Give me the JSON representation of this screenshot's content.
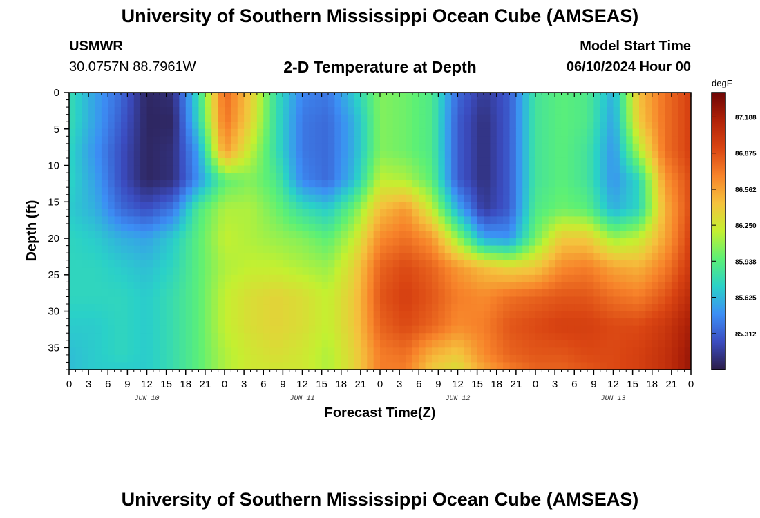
{
  "page": {
    "title_top": "University of Southern Mississippi Ocean Cube (AMSEAS)",
    "title_bottom": "University of Southern Mississippi Ocean Cube (AMSEAS)",
    "station_name": "USMWR",
    "station_coords": "30.0757N  88.7961W",
    "plot_title": "2-D Temperature at Depth",
    "model_start_label": "Model Start Time",
    "model_start_value": "06/10/2024 Hour 00"
  },
  "chart_data": {
    "type": "heatmap",
    "title": "2-D Temperature at Depth",
    "xlabel": "Forecast Time(Z)",
    "ylabel": "Depth (ft)",
    "units": "degF",
    "xlim": [
      0,
      96
    ],
    "ylim": [
      0,
      38
    ],
    "x_ticks": [
      0,
      3,
      6,
      9,
      12,
      15,
      18,
      21,
      24,
      27,
      30,
      33,
      36,
      39,
      42,
      45,
      48,
      51,
      54,
      57,
      60,
      63,
      66,
      69,
      72,
      75,
      78,
      81,
      84,
      87,
      90,
      93,
      96
    ],
    "x_tick_labels": [
      "0",
      "3",
      "6",
      "9",
      "12",
      "15",
      "18",
      "21",
      "0",
      "3",
      "6",
      "9",
      "12",
      "15",
      "18",
      "21",
      "0",
      "3",
      "6",
      "9",
      "12",
      "15",
      "18",
      "21",
      "0",
      "3",
      "6",
      "9",
      "12",
      "15",
      "18",
      "21",
      "0"
    ],
    "day_labels": [
      {
        "x": 12,
        "label": "JUN 10"
      },
      {
        "x": 36,
        "label": "JUN 11"
      },
      {
        "x": 60,
        "label": "JUN 12"
      },
      {
        "x": 84,
        "label": "JUN 13"
      }
    ],
    "y_ticks": [
      0,
      5,
      10,
      15,
      20,
      25,
      30,
      35
    ],
    "colorbar": {
      "min": 85.0,
      "max": 87.4,
      "ticks": [
        85.312,
        85.625,
        85.938,
        86.25,
        86.562,
        86.875,
        87.188
      ],
      "tick_labels": [
        "85.312",
        "85.625",
        "85.938",
        "86.250",
        "86.562",
        "86.875",
        "87.188"
      ],
      "stops": [
        "#2b1d49",
        "#3b4cc0",
        "#3c8ef5",
        "#2ad1c8",
        "#5cf076",
        "#c4f030",
        "#f5c23d",
        "#f7832a",
        "#d94412",
        "#b02208",
        "#6e0606"
      ]
    },
    "depth_levels": [
      0,
      4,
      8,
      12,
      16,
      20,
      24,
      28,
      32,
      36,
      38
    ],
    "time_steps": [
      0,
      4,
      8,
      12,
      16,
      20,
      24,
      28,
      32,
      36,
      40,
      44,
      48,
      52,
      56,
      60,
      64,
      68,
      72,
      76,
      80,
      84,
      88,
      92,
      96
    ],
    "values": [
      [
        85.8,
        85.55,
        85.35,
        85.05,
        85.1,
        85.8,
        86.8,
        86.4,
        85.8,
        85.45,
        85.4,
        85.7,
        86.05,
        86.0,
        85.9,
        85.35,
        85.15,
        85.3,
        85.85,
        85.95,
        85.9,
        85.6,
        86.45,
        86.75,
        86.95
      ],
      [
        85.8,
        85.55,
        85.3,
        85.05,
        85.05,
        85.75,
        86.75,
        86.35,
        85.8,
        85.4,
        85.35,
        85.6,
        86.05,
        86.0,
        85.9,
        85.3,
        85.1,
        85.3,
        85.85,
        85.95,
        85.9,
        85.55,
        86.4,
        86.75,
        86.95
      ],
      [
        85.75,
        85.5,
        85.25,
        85.05,
        85.1,
        85.55,
        86.6,
        86.2,
        85.8,
        85.4,
        85.35,
        85.6,
        86.05,
        86.0,
        85.9,
        85.3,
        85.1,
        85.3,
        85.85,
        85.95,
        85.85,
        85.5,
        86.15,
        86.75,
        86.95
      ],
      [
        85.75,
        85.55,
        85.25,
        85.05,
        85.1,
        85.5,
        85.95,
        86.05,
        85.9,
        85.45,
        85.35,
        85.65,
        86.2,
        86.15,
        85.95,
        85.3,
        85.1,
        85.3,
        85.85,
        85.95,
        85.85,
        85.5,
        85.75,
        86.6,
        86.9
      ],
      [
        85.7,
        85.6,
        85.35,
        85.25,
        85.4,
        85.9,
        86.15,
        86.15,
        86.0,
        85.8,
        85.7,
        86.0,
        86.45,
        86.6,
        86.2,
        85.6,
        85.15,
        85.3,
        85.9,
        86.0,
        85.95,
        85.6,
        85.75,
        86.5,
        86.9
      ],
      [
        85.75,
        85.7,
        85.6,
        85.55,
        85.7,
        85.95,
        86.2,
        86.15,
        86.1,
        86.05,
        85.95,
        86.2,
        86.65,
        86.75,
        86.6,
        86.1,
        85.55,
        85.5,
        86.0,
        86.4,
        86.4,
        86.1,
        86.2,
        86.55,
        86.95
      ],
      [
        85.75,
        85.75,
        85.7,
        85.65,
        85.75,
        85.95,
        86.15,
        86.2,
        86.2,
        86.15,
        86.1,
        86.35,
        86.8,
        86.9,
        86.8,
        86.6,
        86.45,
        86.35,
        86.4,
        86.65,
        86.7,
        86.55,
        86.5,
        86.7,
        87.0
      ],
      [
        85.75,
        85.75,
        85.75,
        85.7,
        85.8,
        85.95,
        86.2,
        86.3,
        86.35,
        86.3,
        86.2,
        86.4,
        86.85,
        86.95,
        86.85,
        86.7,
        86.65,
        86.75,
        86.8,
        86.85,
        86.85,
        86.75,
        86.7,
        86.85,
        87.1
      ],
      [
        85.7,
        85.7,
        85.75,
        85.7,
        85.8,
        85.95,
        86.2,
        86.3,
        86.35,
        86.3,
        86.2,
        86.4,
        86.8,
        86.9,
        86.8,
        86.65,
        86.7,
        86.85,
        86.9,
        86.95,
        86.95,
        86.9,
        86.9,
        87.0,
        87.2
      ],
      [
        85.65,
        85.7,
        85.75,
        85.7,
        85.8,
        85.95,
        86.15,
        86.25,
        86.3,
        86.25,
        86.15,
        86.35,
        86.7,
        86.75,
        86.5,
        86.4,
        86.65,
        86.8,
        86.85,
        86.85,
        86.9,
        86.9,
        86.95,
        87.05,
        87.25
      ],
      [
        85.65,
        85.7,
        85.7,
        85.7,
        85.8,
        85.95,
        86.15,
        86.25,
        86.25,
        86.25,
        86.15,
        86.35,
        86.7,
        86.7,
        86.4,
        86.3,
        86.55,
        86.7,
        86.8,
        86.8,
        86.85,
        86.9,
        86.95,
        87.05,
        87.25
      ]
    ]
  }
}
